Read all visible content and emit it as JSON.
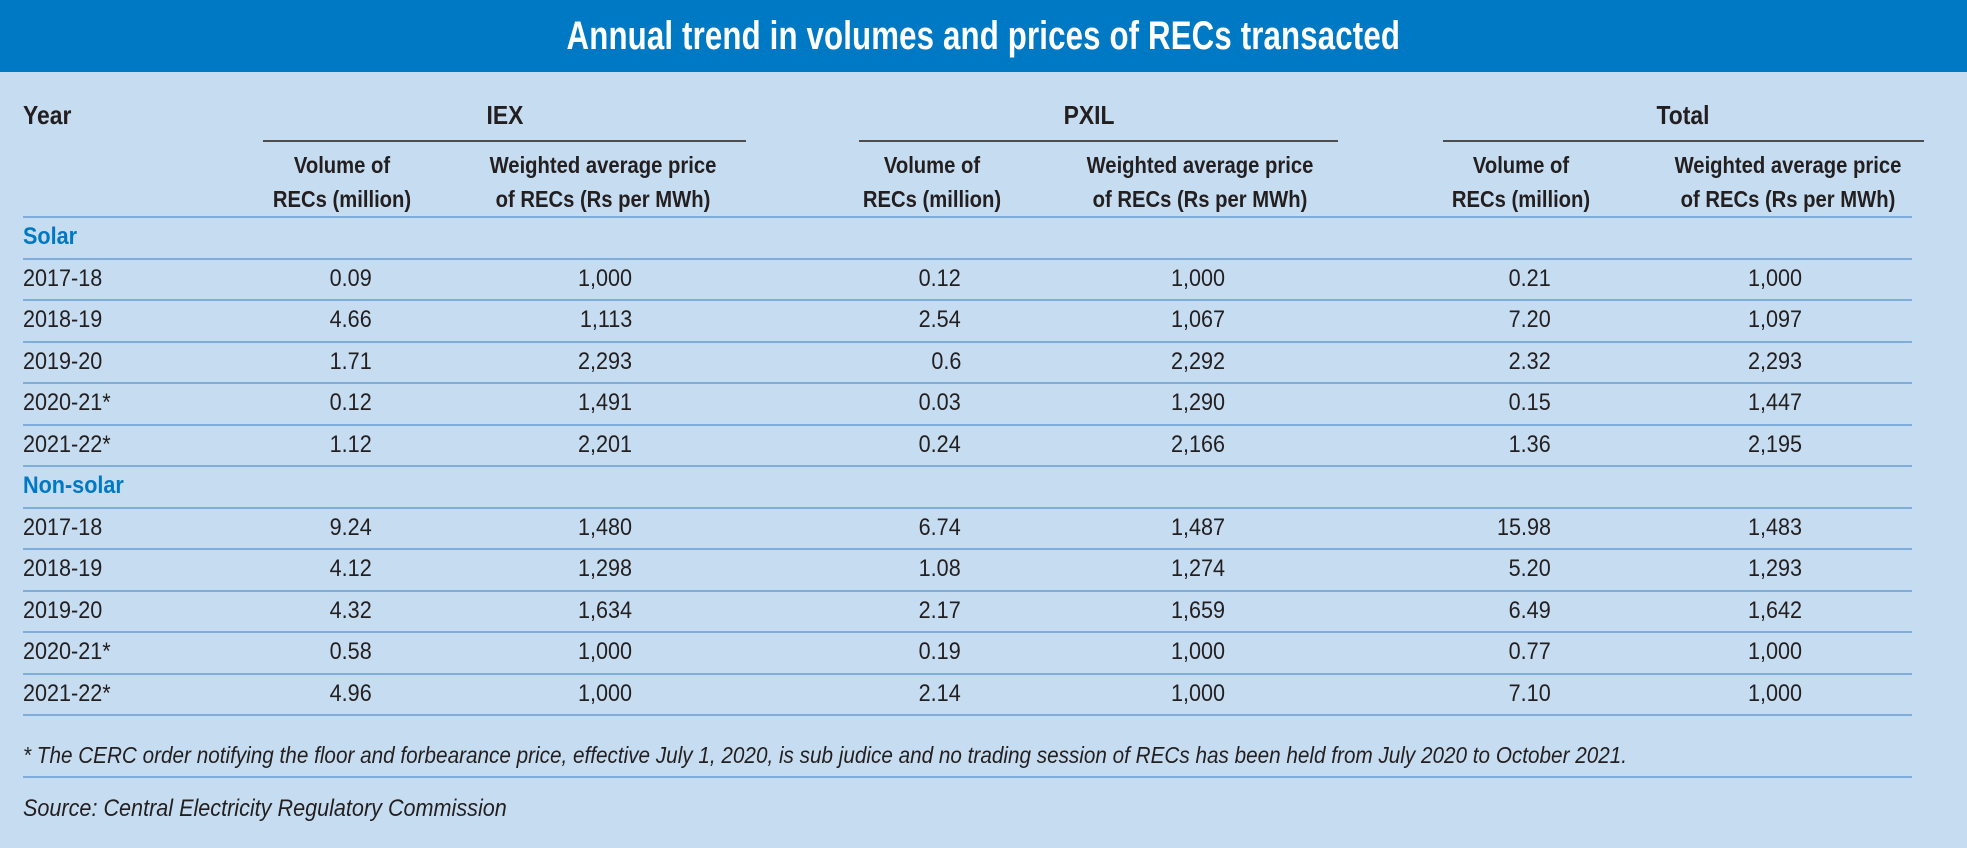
{
  "title": "Annual trend in volumes and prices of RECs transacted",
  "header": {
    "year_label": "Year",
    "groups": [
      "IEX",
      "PXIL",
      "Total"
    ],
    "sub_volume_line1": "Volume of",
    "sub_volume_line2": "RECs (million)",
    "sub_price_line1": "Weighted average price",
    "sub_price_line2": "of RECs (Rs per MWh)"
  },
  "sections": [
    {
      "label": "Solar",
      "rows": [
        {
          "year": "2017-18",
          "iex_vol": "0.09",
          "iex_price": "1,000",
          "pxil_vol": "0.12",
          "pxil_price": "1,000",
          "total_vol": "0.21",
          "total_price": "1,000"
        },
        {
          "year": "2018-19",
          "iex_vol": "4.66",
          "iex_price": "1,113",
          "pxil_vol": "2.54",
          "pxil_price": "1,067",
          "total_vol": "7.20",
          "total_price": "1,097"
        },
        {
          "year": "2019-20",
          "iex_vol": "1.71",
          "iex_price": "2,293",
          "pxil_vol": "0.6",
          "pxil_price": "2,292",
          "total_vol": "2.32",
          "total_price": "2,293"
        },
        {
          "year": "2020-21*",
          "iex_vol": "0.12",
          "iex_price": "1,491",
          "pxil_vol": "0.03",
          "pxil_price": "1,290",
          "total_vol": "0.15",
          "total_price": "1,447"
        },
        {
          "year": "2021-22*",
          "iex_vol": "1.12",
          "iex_price": "2,201",
          "pxil_vol": "0.24",
          "pxil_price": "2,166",
          "total_vol": "1.36",
          "total_price": "2,195"
        }
      ]
    },
    {
      "label": "Non-solar",
      "rows": [
        {
          "year": "2017-18",
          "iex_vol": "9.24",
          "iex_price": "1,480",
          "pxil_vol": "6.74",
          "pxil_price": "1,487",
          "total_vol": "15.98",
          "total_price": "1,483"
        },
        {
          "year": "2018-19",
          "iex_vol": "4.12",
          "iex_price": "1,298",
          "pxil_vol": "1.08",
          "pxil_price": "1,274",
          "total_vol": "5.20",
          "total_price": "1,293"
        },
        {
          "year": "2019-20",
          "iex_vol": "4.32",
          "iex_price": "1,634",
          "pxil_vol": "2.17",
          "pxil_price": "1,659",
          "total_vol": "6.49",
          "total_price": "1,642"
        },
        {
          "year": "2020-21*",
          "iex_vol": "0.58",
          "iex_price": "1,000",
          "pxil_vol": "0.19",
          "pxil_price": "1,000",
          "total_vol": "0.77",
          "total_price": "1,000"
        },
        {
          "year": "2021-22*",
          "iex_vol": "4.96",
          "iex_price": "1,000",
          "pxil_vol": "2.14",
          "pxil_price": "1,000",
          "total_vol": "7.10",
          "total_price": "1,000"
        }
      ]
    }
  ],
  "footnote": "* The CERC order notifying the floor and forbearance price, effective July 1, 2020, is sub judice and no trading session of RECs has been held from July 2020 to October 2021.",
  "source": "Source: Central Electricity Regulatory Commission",
  "colors": {
    "title_bar": "#0079C4",
    "background": "#C6DCF0",
    "section_label": "#0079C4",
    "rule": "#7FAEDD"
  }
}
